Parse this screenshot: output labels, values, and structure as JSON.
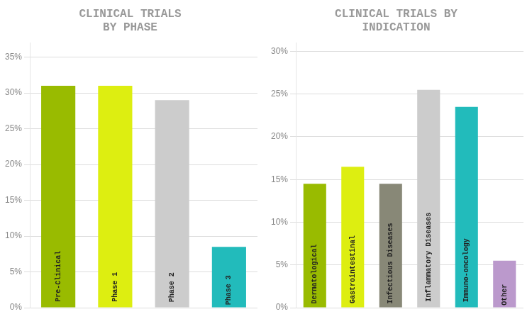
{
  "chart_data": [
    {
      "type": "bar",
      "title": "CLINICAL TRIALS\nBY PHASE",
      "categories": [
        "Pre-Clinical",
        "Phase 1",
        "Phase 2",
        "Phase 3"
      ],
      "values": [
        0.31,
        0.31,
        0.29,
        0.085
      ],
      "colors": [
        "#99bb00",
        "#ddee11",
        "#cccccc",
        "#22bbbb"
      ],
      "ylim": [
        0,
        0.37
      ],
      "yticks": [
        {
          "value": 0.0,
          "label": "0%"
        },
        {
          "value": 0.05,
          "label": "5%"
        },
        {
          "value": 0.1,
          "label": "10%"
        },
        {
          "value": 0.15,
          "label": "15%"
        },
        {
          "value": 0.2,
          "label": "20%"
        },
        {
          "value": 0.25,
          "label": "25%"
        },
        {
          "value": 0.3,
          "label": "30%"
        },
        {
          "value": 0.35,
          "label": "35%"
        }
      ],
      "grid": true,
      "tick_labels": "y"
    },
    {
      "type": "bar",
      "title": "CLINICAL TRIALS BY\nINDICATION",
      "categories": [
        "Dermatological",
        "Gastrointestinal",
        "Infectious Diseases",
        "Inflammatory Diseases",
        "Immuno-oncology",
        "Other"
      ],
      "values": [
        0.145,
        0.165,
        0.145,
        0.255,
        0.235,
        0.055
      ],
      "colors": [
        "#99bb00",
        "#ddee11",
        "#888877",
        "#cccccc",
        "#22bbbb",
        "#bb99cc"
      ],
      "ylim": [
        0,
        0.31
      ],
      "yticks": [
        {
          "value": 0.0,
          "label": "0%"
        },
        {
          "value": 0.05,
          "label": "5%"
        },
        {
          "value": 0.1,
          "label": "10%"
        },
        {
          "value": 0.15,
          "label": "15%"
        },
        {
          "value": 0.2,
          "label": "20%"
        },
        {
          "value": 0.25,
          "label": "25%"
        },
        {
          "value": 0.3,
          "label": "30%"
        }
      ],
      "grid": true,
      "tick_labels": "y"
    }
  ]
}
